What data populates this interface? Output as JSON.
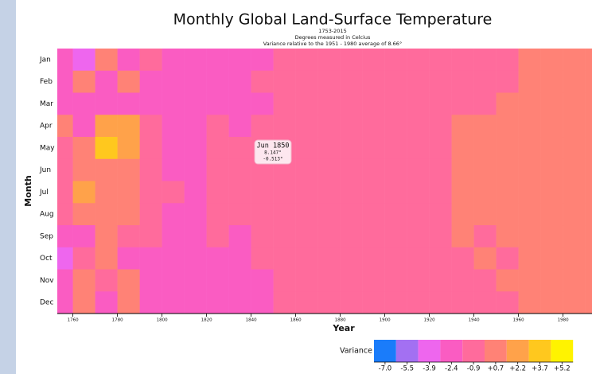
{
  "chart_data": {
    "type": "heatmap",
    "title": "Monthly Global Land-Surface Temperature",
    "subtitle_lines": [
      "1753-2015",
      "Degrees measured in Celcius",
      "Variance relative to the 1951 - 1980 average of 8.66°"
    ],
    "x_label": "Year",
    "y_label": "Month",
    "categories": [
      "Jan",
      "Feb",
      "Mar",
      "Apr",
      "May",
      "Jun",
      "Jul",
      "Aug",
      "Sep",
      "Oct",
      "Nov",
      "Dec"
    ],
    "x": [
      1753,
      1760,
      1770,
      1780,
      1790,
      1800,
      1810,
      1820,
      1830,
      1840,
      1850,
      1860,
      1870,
      1880,
      1890,
      1900,
      1910,
      1920,
      1930,
      1940,
      1950,
      1960,
      1970,
      1980,
      1990
    ],
    "xlim": [
      1753,
      1993
    ],
    "xticks": [
      1760,
      1780,
      1800,
      1820,
      1840,
      1860,
      1880,
      1900,
      1920,
      1940,
      1960,
      1980
    ],
    "values": [
      [
        -1.2,
        -2.6,
        0.9,
        -1.0,
        -0.3,
        -1.6,
        -2.1,
        -1.0,
        -1.3,
        -1.1,
        -0.8,
        -0.7,
        -0.6,
        -0.9,
        -0.7,
        -0.4,
        -0.3,
        0.2,
        0.5,
        0.4,
        0.6,
        0.9,
        1.0,
        1.1,
        1.3
      ],
      [
        -1.5,
        1.2,
        -1.8,
        0.8,
        -1.1,
        -1.4,
        -1.9,
        -1.2,
        -1.0,
        -0.9,
        -0.7,
        -0.8,
        -0.5,
        -0.6,
        -0.8,
        -0.3,
        -0.2,
        0.3,
        0.4,
        0.6,
        0.5,
        0.8,
        1.0,
        1.2,
        1.4
      ],
      [
        -1.9,
        -1.4,
        -1.1,
        -2.0,
        -1.6,
        -1.5,
        -2.2,
        -1.3,
        -1.2,
        -1.0,
        -0.9,
        -0.8,
        -0.6,
        -0.7,
        -0.5,
        -0.4,
        -0.1,
        0.2,
        0.6,
        0.5,
        0.7,
        0.8,
        1.1,
        1.3,
        1.5
      ],
      [
        0.9,
        -1.0,
        2.4,
        2.6,
        -0.4,
        -1.2,
        -1.8,
        -0.9,
        -1.1,
        -0.8,
        -0.6,
        -0.5,
        -0.4,
        -0.6,
        -0.3,
        -0.2,
        0.1,
        0.5,
        0.7,
        0.8,
        0.9,
        0.9,
        1.0,
        1.2,
        1.4
      ],
      [
        -0.6,
        1.4,
        3.8,
        2.8,
        0.2,
        -1.0,
        -1.6,
        -0.8,
        -0.9,
        -0.7,
        -0.5,
        -0.6,
        -0.3,
        -0.4,
        -0.2,
        -0.1,
        0.3,
        0.6,
        0.8,
        0.7,
        0.9,
        1.0,
        1.1,
        1.2,
        1.5
      ],
      [
        -0.8,
        0.9,
        1.6,
        1.2,
        -0.5,
        -1.1,
        -1.5,
        -0.7,
        -0.8,
        -0.6,
        -0.5,
        -0.5,
        -0.4,
        -0.3,
        -0.2,
        0.0,
        0.2,
        0.5,
        0.7,
        0.8,
        0.8,
        0.9,
        1.0,
        1.1,
        1.3
      ],
      [
        -0.3,
        2.3,
        1.1,
        1.5,
        -0.2,
        -0.9,
        -1.4,
        -0.6,
        -0.7,
        -0.5,
        -0.4,
        -0.3,
        -0.2,
        -0.4,
        -0.1,
        0.1,
        0.3,
        0.6,
        0.8,
        0.9,
        0.8,
        0.9,
        1.0,
        1.2,
        1.3
      ],
      [
        -0.5,
        1.7,
        0.8,
        1.3,
        -0.1,
        -1.0,
        -1.3,
        -0.7,
        -0.6,
        -0.6,
        -0.4,
        -0.4,
        -0.3,
        -0.3,
        -0.2,
        0.0,
        0.2,
        0.5,
        0.9,
        0.9,
        0.8,
        0.9,
        1.1,
        1.2,
        1.4
      ],
      [
        -1.1,
        -1.3,
        0.9,
        -0.4,
        -0.6,
        -1.3,
        -1.7,
        -0.9,
        -1.0,
        -0.8,
        -0.6,
        -0.6,
        -0.5,
        -0.5,
        -0.4,
        -0.2,
        0.1,
        0.4,
        0.7,
        0.6,
        0.7,
        0.8,
        0.9,
        1.1,
        1.3
      ],
      [
        -3.2,
        -0.7,
        1.0,
        -1.2,
        -1.0,
        -1.4,
        -1.8,
        -1.0,
        -1.1,
        -0.9,
        -0.7,
        -0.5,
        -0.6,
        -0.6,
        -0.5,
        -0.3,
        0.0,
        0.4,
        0.6,
        0.7,
        0.6,
        0.8,
        1.0,
        1.1,
        1.3
      ],
      [
        -1.6,
        1.1,
        -0.8,
        1.3,
        -1.2,
        -1.6,
        -2.0,
        -1.1,
        -1.2,
        -1.0,
        -0.8,
        -0.7,
        -0.6,
        -0.5,
        -0.6,
        -0.4,
        -0.1,
        0.3,
        0.5,
        0.6,
        0.7,
        0.9,
        1.0,
        1.2,
        1.4
      ],
      [
        -2.2,
        1.9,
        -1.3,
        0.8,
        -1.4,
        -1.8,
        -2.1,
        -1.2,
        -1.3,
        -1.1,
        -0.9,
        -0.8,
        -0.7,
        -0.8,
        -0.6,
        -0.4,
        -0.2,
        0.2,
        0.4,
        0.5,
        0.6,
        0.8,
        0.9,
        1.1,
        1.3
      ]
    ],
    "legend_title": "Variance",
    "legend_ticks": [
      {
        "value": -7.0,
        "label": "-7.0"
      },
      {
        "value": -5.5,
        "label": "-5.5"
      },
      {
        "value": -3.9,
        "label": "-3.9"
      },
      {
        "value": -2.4,
        "label": "-2.4"
      },
      {
        "value": -0.9,
        "label": "-0.9"
      },
      {
        "value": 0.7,
        "label": "+0.7"
      },
      {
        "value": 2.2,
        "label": "+2.2"
      },
      {
        "value": 3.7,
        "label": "+3.7"
      },
      {
        "value": 5.2,
        "label": "+5.2"
      }
    ],
    "colors": [
      "#1a7cfa",
      "#a370f2",
      "#ee66ee",
      "#fa5cc2",
      "#ff6b9c",
      "#ff8276",
      "#ffa24a",
      "#ffc81e",
      "#fff300"
    ],
    "tooltip": {
      "title": "Jun 1850",
      "temperature": "8.147°",
      "variance": "-0.513°"
    }
  }
}
